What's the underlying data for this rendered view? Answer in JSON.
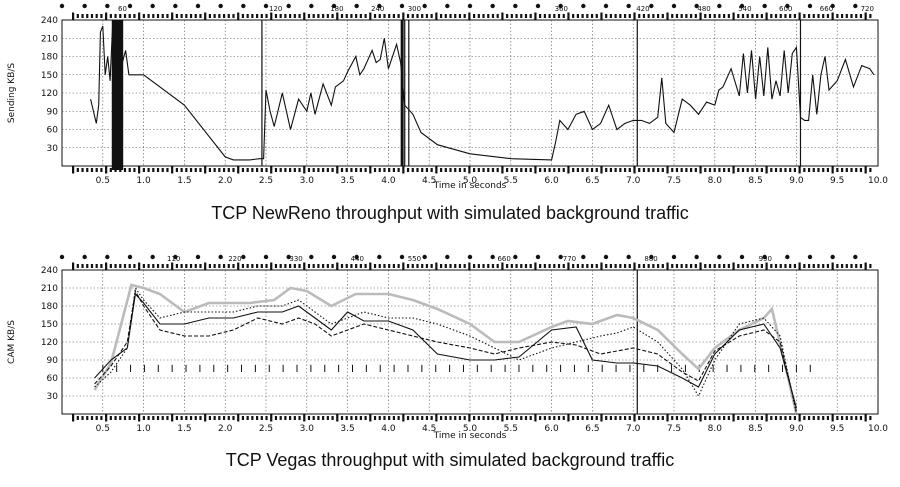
{
  "chart_data": [
    {
      "type": "line",
      "title": "",
      "caption": "TCP NewReno throughput with simulated background traffic",
      "xlabel": "Time in seconds",
      "ylabel": "Sending KB/S",
      "xlim": [
        0.0,
        10.0
      ],
      "ylim": [
        0,
        240
      ],
      "grid": true,
      "x_ticks": [
        "0.5",
        "1.0",
        "1.5",
        "2.0",
        "2.5",
        "3.0",
        "3.5",
        "4.0",
        "4.5",
        "5.0",
        "5.5",
        "6.0",
        "6.5",
        "7.0",
        "7.5",
        "8.0",
        "8.5",
        "9.0",
        "9.5",
        "10.0"
      ],
      "y_ticks": [
        "30",
        "60",
        "90",
        "120",
        "150",
        "180",
        "210",
        "240"
      ],
      "top_markers": [
        "60",
        "120",
        "180",
        "240",
        "300",
        "360",
        "420",
        "480",
        "540",
        "600",
        "660",
        "720"
      ],
      "top_marker_x": [
        0.65,
        2.5,
        3.25,
        3.75,
        4.2,
        6.0,
        7.0,
        7.75,
        8.25,
        8.75,
        9.25,
        9.75
      ],
      "vertical_lines_x": [
        2.45,
        4.2,
        4.25,
        7.05,
        9.05
      ],
      "series": [
        {
          "x": [
            0.35,
            0.42,
            0.45,
            0.47,
            0.5,
            0.53,
            0.56,
            0.59,
            0.62,
            0.66,
            0.72,
            0.78,
            0.82,
            1.0,
            1.5,
            2.0,
            2.1,
            2.3,
            2.42,
            2.47,
            2.5,
            2.55,
            2.6,
            2.7,
            2.8,
            2.9,
            3.0,
            3.05,
            3.1,
            3.2,
            3.3,
            3.35,
            3.45,
            3.5,
            3.6,
            3.65,
            3.7,
            3.8,
            3.85,
            3.9,
            3.95,
            4.0,
            4.1,
            4.15,
            4.2,
            4.3,
            4.4,
            4.6,
            5.0,
            5.5,
            6.0,
            6.05,
            6.1,
            6.2,
            6.3,
            6.4,
            6.5,
            6.6,
            6.7,
            6.8,
            6.9,
            7.0,
            7.1,
            7.2,
            7.3,
            7.35,
            7.4,
            7.5,
            7.6,
            7.7,
            7.8,
            7.9,
            8.0,
            8.05,
            8.1,
            8.2,
            8.3,
            8.35,
            8.4,
            8.45,
            8.5,
            8.55,
            8.6,
            8.65,
            8.7,
            8.75,
            8.8,
            8.85,
            8.9,
            8.95,
            9.0,
            9.05,
            9.1,
            9.15,
            9.2,
            9.25,
            9.3,
            9.35,
            9.4,
            9.5,
            9.6,
            9.7,
            9.8,
            9.9,
            9.95
          ],
          "y": [
            110,
            70,
            100,
            220,
            230,
            150,
            180,
            140,
            230,
            210,
            160,
            190,
            150,
            150,
            100,
            15,
            10,
            10,
            12,
            12,
            125,
            90,
            65,
            120,
            60,
            110,
            90,
            120,
            85,
            135,
            100,
            130,
            140,
            155,
            180,
            150,
            160,
            190,
            170,
            175,
            210,
            160,
            200,
            170,
            100,
            85,
            55,
            35,
            20,
            12,
            10,
            40,
            75,
            60,
            85,
            90,
            60,
            70,
            100,
            60,
            70,
            75,
            75,
            70,
            80,
            145,
            70,
            55,
            110,
            100,
            85,
            105,
            100,
            125,
            130,
            160,
            115,
            185,
            120,
            190,
            110,
            180,
            115,
            195,
            110,
            140,
            115,
            190,
            120,
            185,
            195,
            80,
            75,
            75,
            150,
            85,
            150,
            180,
            125,
            140,
            175,
            130,
            165,
            160,
            150
          ],
          "color": "#111111"
        }
      ]
    },
    {
      "type": "line",
      "title": "",
      "caption": "TCP Vegas throughput with simulated background traffic",
      "xlabel": "Time in seconds",
      "ylabel": "CAM KB/S",
      "xlim": [
        0.0,
        10.0
      ],
      "ylim": [
        0,
        240
      ],
      "grid": true,
      "x_ticks": [
        "0.5",
        "1.0",
        "1.5",
        "2.0",
        "2.5",
        "3.0",
        "3.5",
        "4.0",
        "4.5",
        "5.0",
        "5.5",
        "6.0",
        "6.5",
        "7.0",
        "7.5",
        "8.0",
        "8.5",
        "9.0",
        "9.5",
        "10.0"
      ],
      "y_ticks": [
        "30",
        "60",
        "90",
        "120",
        "150",
        "180",
        "210",
        "240"
      ],
      "top_markers": [
        "110",
        "220",
        "330",
        "440",
        "550",
        "660",
        "770",
        "880",
        "990"
      ],
      "top_marker_x": [
        1.25,
        2.0,
        2.75,
        3.5,
        4.2,
        5.3,
        6.1,
        7.1,
        8.5
      ],
      "vertical_lines_x": [
        7.05
      ],
      "series": [
        {
          "x": [
            0.4,
            0.6,
            0.85,
            1.0,
            1.2,
            1.5,
            1.8,
            2.0,
            2.3,
            2.6,
            2.8,
            3.0,
            3.3,
            3.6,
            4.0,
            4.3,
            4.6,
            5.0,
            5.3,
            5.6,
            6.0,
            6.2,
            6.5,
            6.8,
            7.0,
            7.3,
            7.6,
            7.8,
            8.0,
            8.3,
            8.6,
            8.7,
            8.9,
            9.0
          ],
          "y": [
            40,
            85,
            215,
            210,
            200,
            170,
            185,
            185,
            185,
            190,
            210,
            205,
            180,
            200,
            200,
            190,
            175,
            150,
            120,
            120,
            145,
            155,
            150,
            165,
            160,
            140,
            100,
            75,
            110,
            140,
            160,
            175,
            60,
            0
          ],
          "color": "#bbbbbb"
        },
        {
          "x": [
            0.4,
            0.6,
            0.8,
            0.9,
            1.0,
            1.2,
            1.5,
            1.8,
            2.1,
            2.4,
            2.7,
            2.9,
            3.1,
            3.3,
            3.5,
            3.7,
            4.0,
            4.3,
            4.6,
            5.0,
            5.3,
            5.6,
            6.0,
            6.3,
            6.5,
            6.8,
            7.0,
            7.3,
            7.6,
            7.8,
            8.0,
            8.3,
            8.6,
            8.8,
            9.0
          ],
          "y": [
            60,
            90,
            110,
            200,
            185,
            150,
            150,
            160,
            160,
            170,
            170,
            180,
            160,
            140,
            170,
            155,
            155,
            140,
            100,
            90,
            90,
            95,
            140,
            145,
            90,
            85,
            85,
            80,
            60,
            45,
            100,
            140,
            150,
            110,
            10
          ],
          "color": "#111111"
        },
        {
          "x": [
            0.4,
            0.6,
            0.8,
            0.9,
            1.0,
            1.2,
            1.5,
            1.8,
            2.1,
            2.4,
            2.7,
            2.9,
            3.1,
            3.3,
            3.5,
            3.7,
            4.0,
            4.3,
            4.6,
            5.0,
            5.3,
            5.6,
            6.0,
            6.3,
            6.6,
            6.8,
            7.0,
            7.3,
            7.6,
            7.8,
            8.0,
            8.3,
            8.6,
            8.8,
            9.0
          ],
          "y": [
            50,
            80,
            120,
            205,
            180,
            140,
            130,
            130,
            140,
            160,
            150,
            160,
            150,
            130,
            140,
            150,
            140,
            130,
            120,
            110,
            100,
            110,
            120,
            115,
            100,
            105,
            110,
            100,
            70,
            55,
            105,
            130,
            140,
            120,
            5
          ],
          "color": "#111111",
          "dash": "4,2"
        },
        {
          "x": [
            0.4,
            0.6,
            0.8,
            0.9,
            1.0,
            1.2,
            1.5,
            1.8,
            2.1,
            2.4,
            2.7,
            2.9,
            3.1,
            3.3,
            3.5,
            3.7,
            4.0,
            4.3,
            4.6,
            5.0,
            5.3,
            5.6,
            6.0,
            6.3,
            6.6,
            6.8,
            7.0,
            7.3,
            7.6,
            7.8,
            8.0,
            8.3,
            8.6,
            8.8,
            9.0
          ],
          "y": [
            45,
            70,
            110,
            210,
            190,
            160,
            170,
            170,
            170,
            180,
            180,
            190,
            170,
            150,
            160,
            170,
            160,
            160,
            150,
            130,
            110,
            90,
            110,
            120,
            130,
            135,
            145,
            120,
            75,
            30,
            90,
            150,
            160,
            130,
            0
          ],
          "color": "#111111",
          "dash": "1.5,2"
        }
      ]
    }
  ],
  "rows_y_text": "|"
}
